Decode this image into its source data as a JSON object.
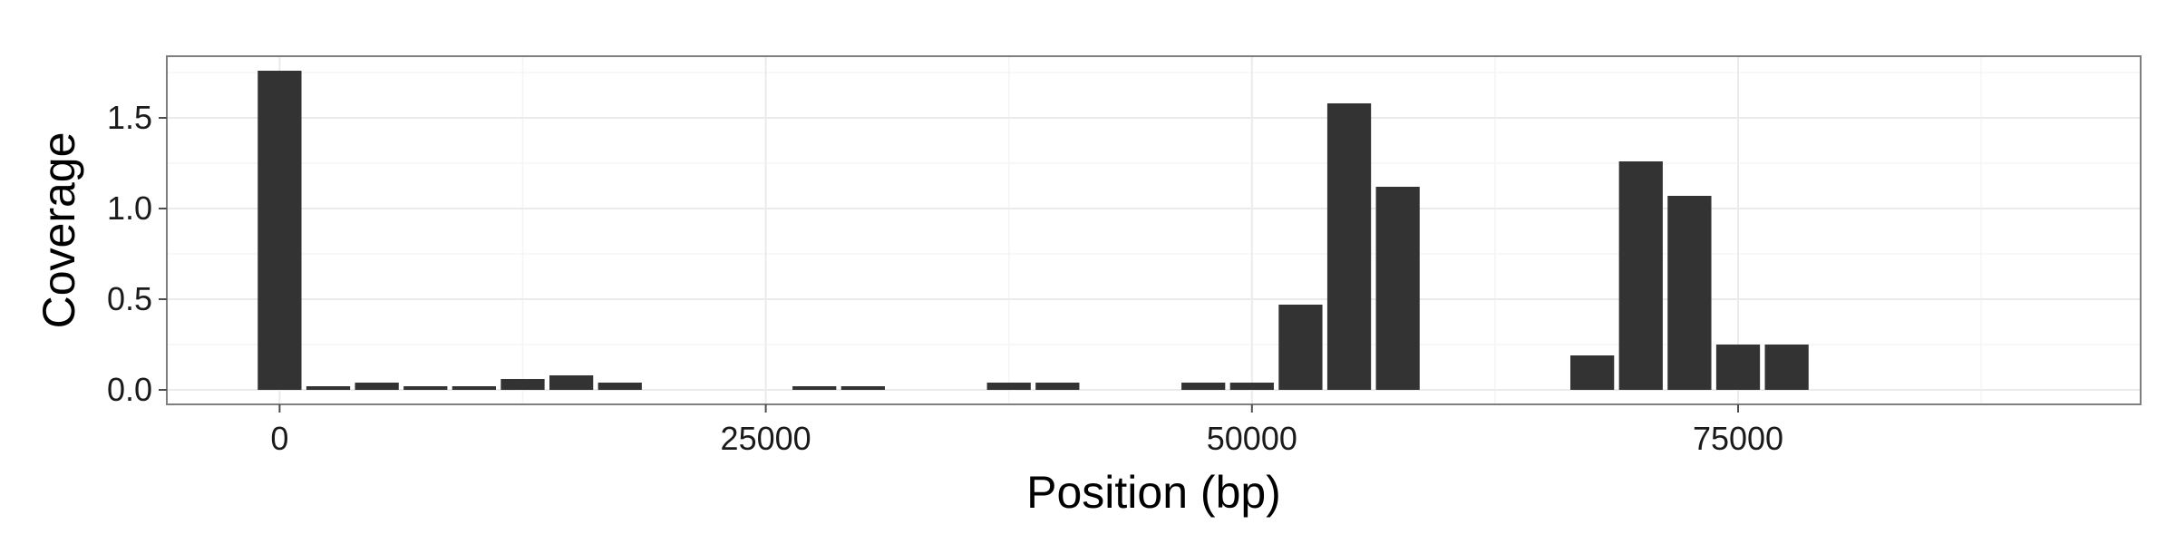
{
  "chart_data": {
    "type": "bar",
    "xlabel": "Position (bp)",
    "ylabel": "Coverage",
    "x_ticks": [
      0,
      25000,
      50000,
      75000
    ],
    "x_tick_labels": [
      "0",
      "25000",
      "50000",
      "75000"
    ],
    "y_ticks": [
      0,
      0.5,
      1,
      1.5
    ],
    "y_tick_labels": [
      "0.0",
      "0.5",
      "1.0",
      "1.5"
    ],
    "xlim": [
      -5800,
      95700
    ],
    "ylim": [
      -0.08,
      1.84
    ],
    "grid": true,
    "bar_width": 2250,
    "x": [
      0,
      2500,
      5000,
      7500,
      10000,
      12500,
      15000,
      17500,
      27500,
      30000,
      37500,
      40000,
      47500,
      50000,
      52500,
      55000,
      57500,
      67500,
      70000,
      72500,
      75000,
      77500
    ],
    "values": [
      1.76,
      0.02,
      0.04,
      0.02,
      0.02,
      0.06,
      0.08,
      0.04,
      0.02,
      0.02,
      0.04,
      0.04,
      0.04,
      0.04,
      0.47,
      1.58,
      1.12,
      0.19,
      1.26,
      1.07,
      0.25,
      0.25
    ],
    "colors": {
      "bar": "#333333",
      "panel_border": "#7f7f7f",
      "grid_major": "#ebebeb",
      "grid_minor": "#f5f5f5",
      "tick": "#4d4d4d"
    }
  }
}
